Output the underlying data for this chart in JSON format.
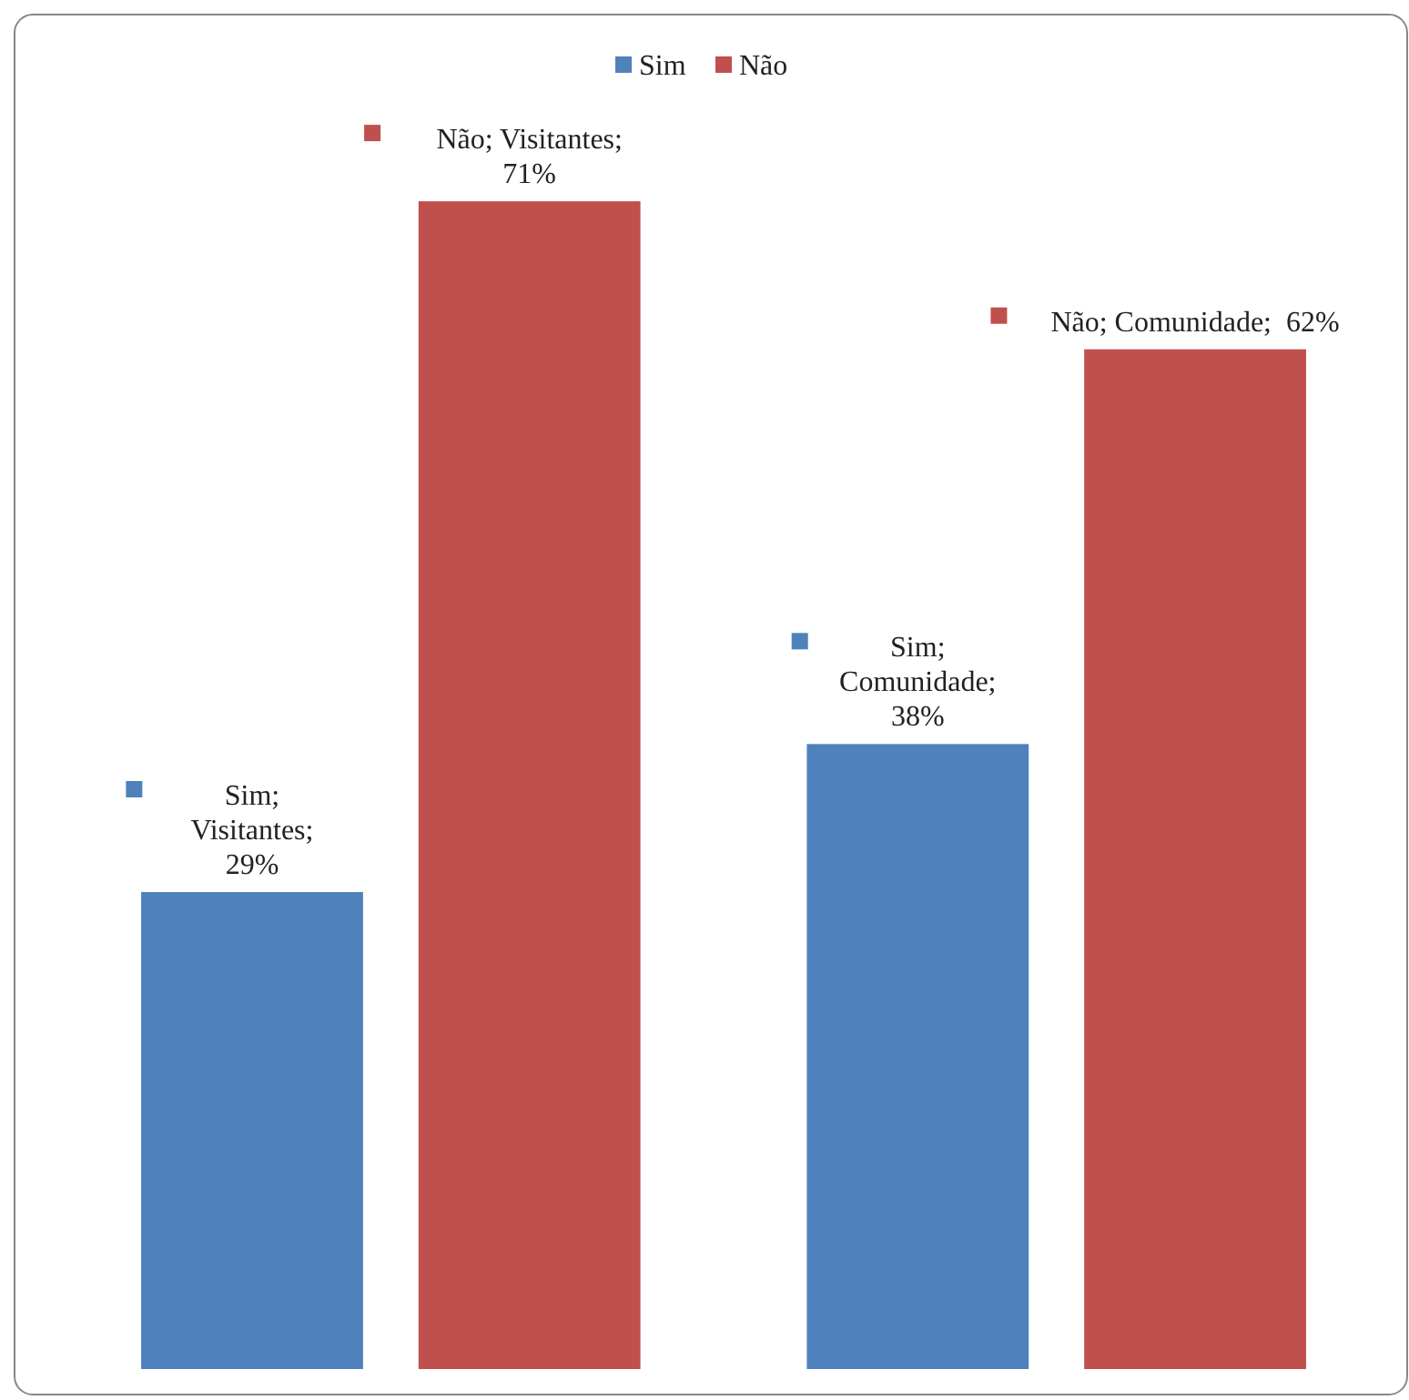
{
  "chart_data": {
    "type": "bar",
    "categories": [
      null,
      null
    ],
    "series": [
      {
        "name": "Sim",
        "color": "#4f81bd",
        "values": [
          29,
          38
        ],
        "value_labels": [
          "Sim;\nVisitantes;\n29%",
          "Sim;\nComunidade;\n38%"
        ]
      },
      {
        "name": "Não",
        "color": "#c0504d",
        "values": [
          71,
          62
        ],
        "value_labels": [
          "Não; Visitantes;\n71%",
          "Não; Comunidade;  62%"
        ]
      }
    ],
    "legend": "top"
  }
}
